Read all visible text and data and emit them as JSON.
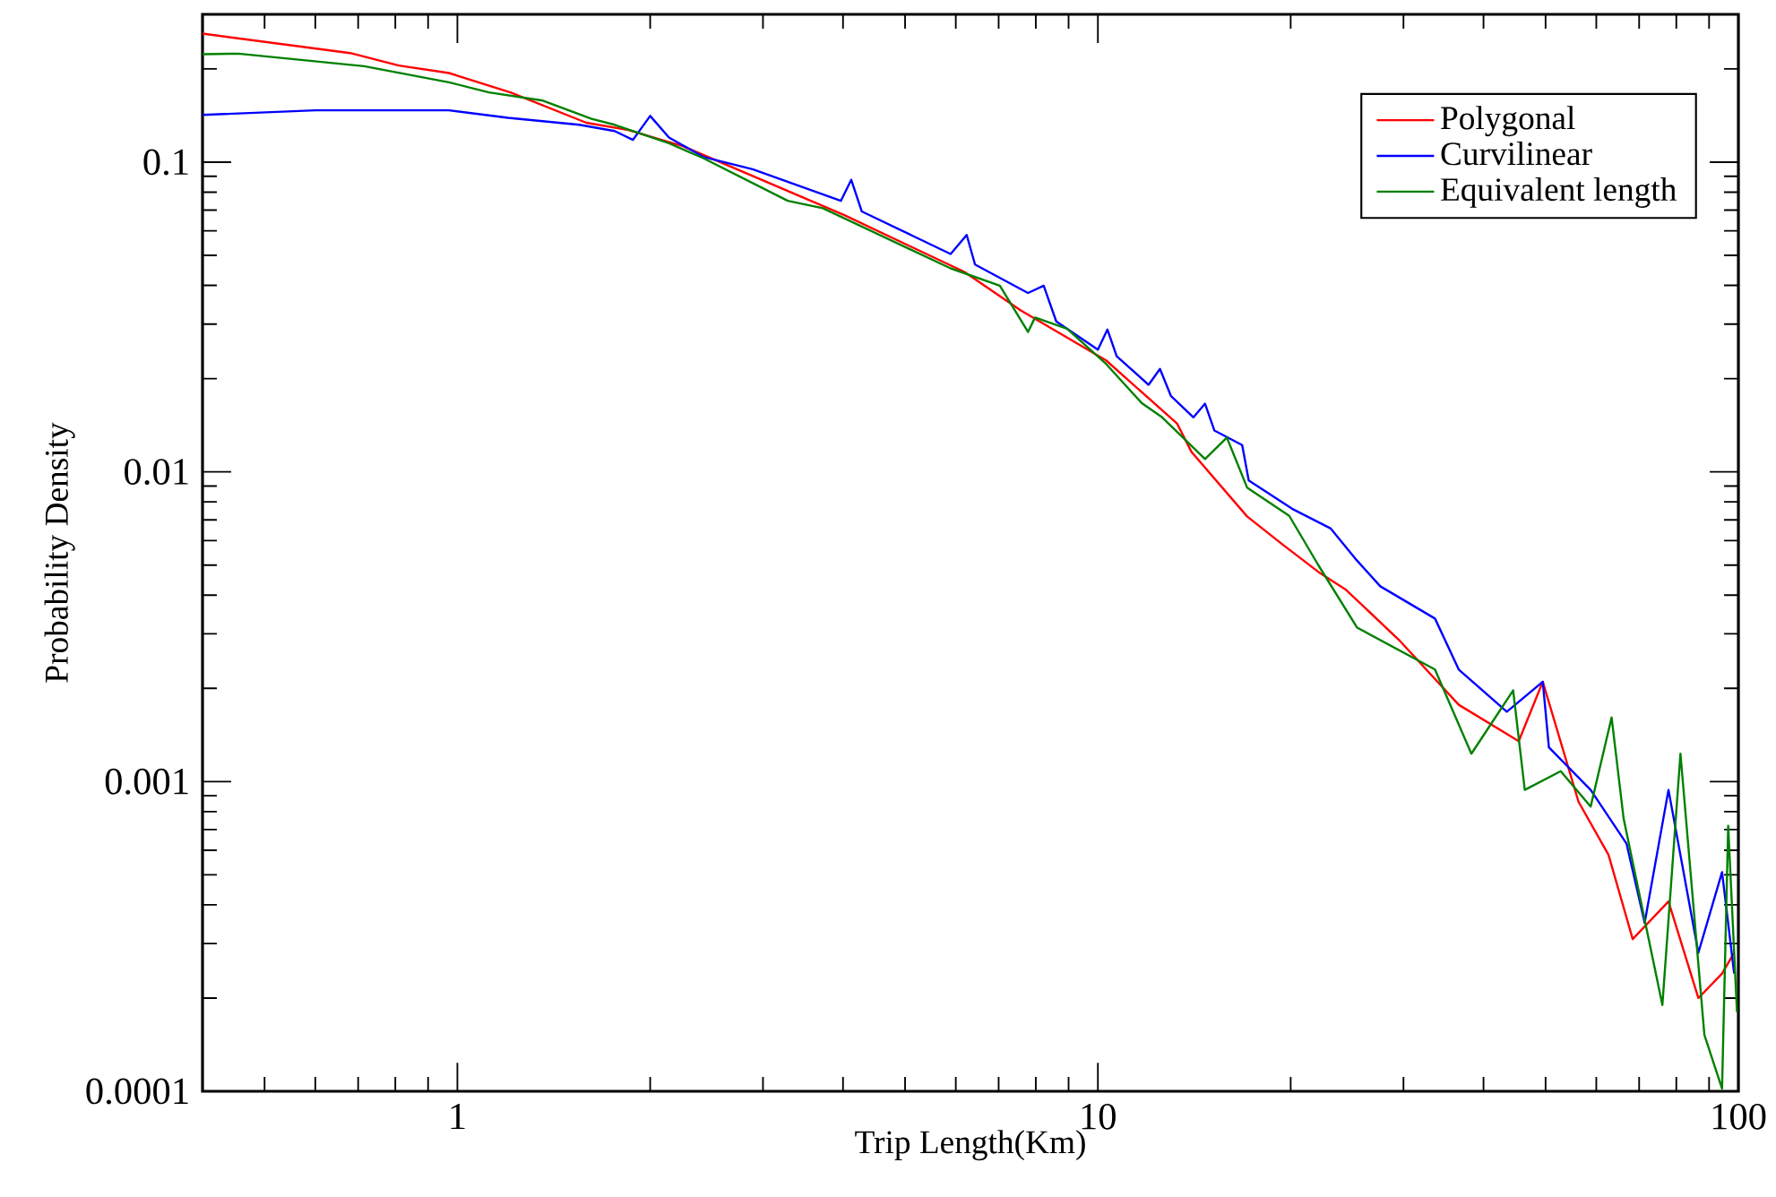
{
  "chart_data": {
    "type": "line",
    "xlabel": "Trip Length(Km)",
    "ylabel": "Probability Density",
    "log": "xy",
    "legend": "top right",
    "marker": "none",
    "line_style": "solid",
    "xlim": [
      0.4,
      100
    ],
    "ylim": [
      0.0001,
      0.3
    ],
    "xticks": [
      1,
      10,
      100
    ],
    "yticks": [
      {
        "value": 0.0001,
        "label": "0.0001"
      },
      {
        "value": 0.001,
        "label": "0.001"
      },
      {
        "value": 0.01,
        "label": "0.01"
      },
      {
        "value": 0.1,
        "label": "0.1"
      }
    ],
    "series": [
      {
        "name": "Polygonal",
        "color": "#ff0000",
        "x": [
          0.4,
          0.68,
          0.81,
          0.97,
          1.21,
          1.59,
          1.85,
          2.17,
          2.24,
          4.02,
          6.19,
          7.58,
          10.3,
          13.3,
          14.0,
          17.1,
          19.4,
          22.1,
          24.4,
          29.5,
          36.6,
          45.4,
          49.5,
          56.3,
          62.7,
          68.4,
          77.8,
          86.6,
          94.3,
          98.5
        ],
        "values": [
          0.26,
          0.225,
          0.205,
          0.194,
          0.168,
          0.134,
          0.127,
          0.115,
          0.113,
          0.0674,
          0.0442,
          0.0332,
          0.0229,
          0.0143,
          0.0116,
          0.00718,
          0.00584,
          0.00475,
          0.00416,
          0.00287,
          0.00177,
          0.00135,
          0.0021,
          0.00086,
          0.00058,
          0.00031,
          0.00041,
          0.0002,
          0.00024,
          0.00028
        ]
      },
      {
        "name": "Curvilinear",
        "color": "#0000ff",
        "x": [
          0.4,
          0.6,
          0.97,
          1.2,
          1.55,
          1.76,
          1.88,
          2.0,
          2.14,
          2.42,
          2.89,
          3.97,
          4.12,
          4.28,
          5.89,
          6.24,
          6.43,
          7.78,
          8.23,
          8.61,
          10.0,
          10.35,
          10.7,
          12.0,
          12.5,
          13.0,
          14.1,
          14.7,
          15.2,
          16.8,
          17.2,
          20.1,
          23.1,
          25.2,
          27.6,
          33.6,
          36.6,
          43.5,
          49.5,
          50.6,
          58.8,
          66.9,
          71.4,
          77.8,
          86.6,
          94.3,
          98.5
        ],
        "values": [
          0.142,
          0.147,
          0.147,
          0.139,
          0.132,
          0.126,
          0.118,
          0.141,
          0.12,
          0.104,
          0.0949,
          0.075,
          0.0877,
          0.0693,
          0.0505,
          0.0582,
          0.0467,
          0.0378,
          0.0399,
          0.0306,
          0.0248,
          0.0288,
          0.0236,
          0.0191,
          0.0215,
          0.0176,
          0.015,
          0.0166,
          0.0136,
          0.0122,
          0.00938,
          0.0076,
          0.00656,
          0.00526,
          0.00427,
          0.00336,
          0.0023,
          0.00168,
          0.0021,
          0.00129,
          0.00094,
          0.00063,
          0.00035,
          0.00094,
          0.00028,
          0.00051,
          0.00024
        ]
      },
      {
        "name": "Equivalent length",
        "color": "#008000",
        "x": [
          0.4,
          0.455,
          0.715,
          0.97,
          1.12,
          1.36,
          1.62,
          1.76,
          2.14,
          2.42,
          3.28,
          3.72,
          5.89,
          7.03,
          7.78,
          7.98,
          8.95,
          10.3,
          11.7,
          12.6,
          14.7,
          15.9,
          17.1,
          19.9,
          22.1,
          25.4,
          33.6,
          38.3,
          44.5,
          46.4,
          52.8,
          58.8,
          63.4,
          66.2,
          76.1,
          81.2,
          88.5,
          94.3,
          96.4,
          99.5
        ],
        "values": [
          0.223,
          0.224,
          0.204,
          0.181,
          0.168,
          0.158,
          0.138,
          0.132,
          0.115,
          0.103,
          0.075,
          0.071,
          0.0454,
          0.0399,
          0.0283,
          0.0315,
          0.029,
          0.0223,
          0.0167,
          0.015,
          0.011,
          0.0129,
          0.0089,
          0.00721,
          0.00499,
          0.00314,
          0.0023,
          0.00123,
          0.00197,
          0.00094,
          0.00108,
          0.00083,
          0.00161,
          0.00076,
          0.00019,
          0.00123,
          0.000152,
          0.000102,
          0.00072,
          0.00018
        ]
      }
    ]
  }
}
